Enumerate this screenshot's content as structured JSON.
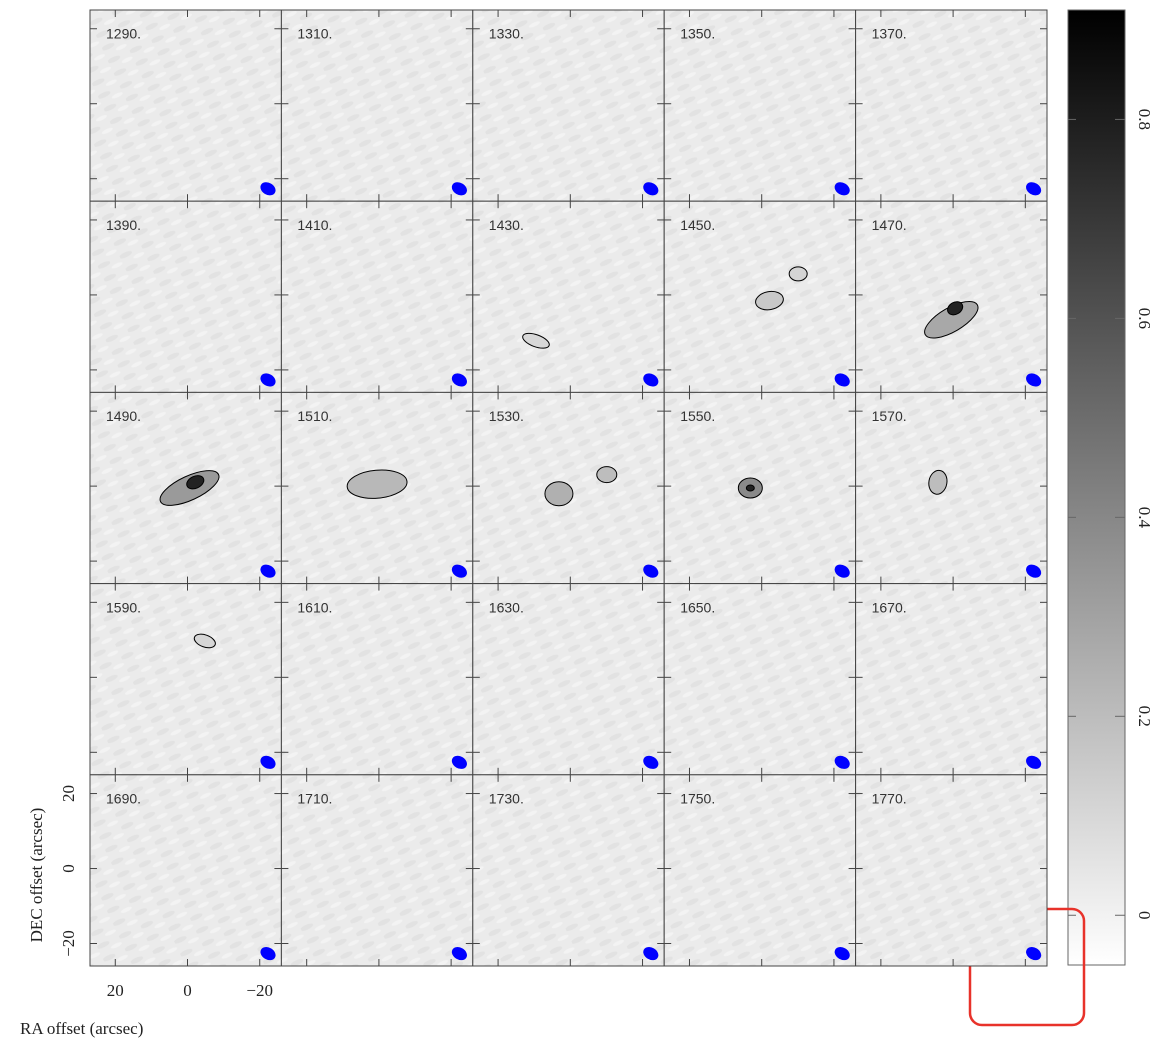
{
  "chart_data": {
    "type": "channel_map",
    "panels": [
      "1290.",
      "1310.",
      "1330.",
      "1350.",
      "1370.",
      "1390.",
      "1410.",
      "1430.",
      "1450.",
      "1470.",
      "1490.",
      "1510.",
      "1530.",
      "1550.",
      "1570.",
      "1590.",
      "1610.",
      "1630.",
      "1650.",
      "1670.",
      "1690.",
      "1710.",
      "1730.",
      "1750.",
      "1770."
    ],
    "columns": 5,
    "x_label": "RA offset (arcsec)",
    "y_label": "DEC offset (arcsec)",
    "xlim": [
      27,
      -26
    ],
    "xticks": [
      20,
      0,
      {
        "value": -20,
        "label": "−20"
      }
    ],
    "ylim": [
      -26,
      25
    ],
    "yticks": [
      {
        "value": -20,
        "label": "−20"
      },
      0,
      20
    ],
    "colorbar": {
      "lim": [
        -0.05,
        0.91
      ],
      "ticks": [
        0,
        0.2,
        0.4,
        0.6,
        0.8
      ]
    },
    "beam_color": "#0000ff",
    "contour_color": "#000000"
  }
}
